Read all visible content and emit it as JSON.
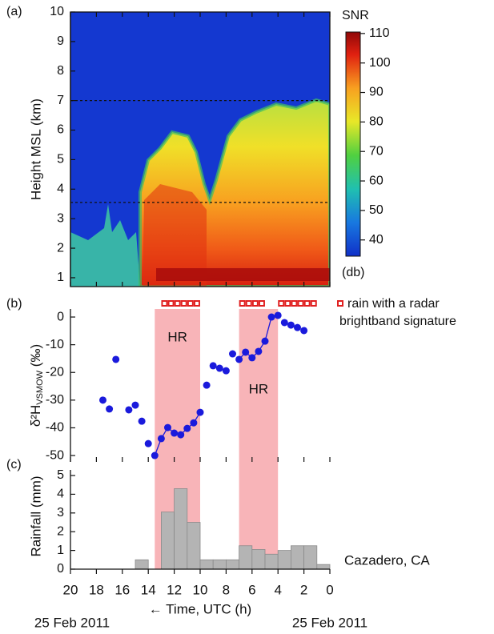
{
  "chart_data": [
    {
      "type": "heatmap",
      "panel_label": "(a)",
      "ylabel": "Height MSL (km)",
      "xlim": [
        20,
        0
      ],
      "ylim": [
        0.7,
        10
      ],
      "yticks": [
        1,
        2,
        3,
        4,
        5,
        6,
        7,
        8,
        9,
        10
      ],
      "hlines": [
        7.0,
        3.55
      ],
      "colorbar": {
        "label": "SNR",
        "unit": "(db)",
        "lim": [
          34.5,
          110.5
        ],
        "ticks": [
          40,
          50,
          60,
          70,
          80,
          90,
          100,
          110
        ]
      }
    },
    {
      "type": "scatter",
      "panel_label": "(b)",
      "ylabel": "δ²H",
      "ylabel_sub": "VSMOW",
      "ylabel_unit": " (‰)",
      "xlim": [
        20,
        0
      ],
      "ylim": [
        -52.3,
        2.9
      ],
      "yticks": [
        0,
        -10,
        -20,
        -30,
        -40,
        -50
      ],
      "x": [
        17.5,
        17,
        16.5,
        15.5,
        15,
        14.5,
        14,
        13.5,
        13,
        12.5,
        12,
        11.5,
        11,
        10.5,
        10,
        9.5,
        9,
        8.5,
        8,
        7.5,
        7,
        6.5,
        6,
        5.5,
        5,
        4.5,
        4,
        3.5,
        3,
        2.5,
        2
      ],
      "series": [
        {
          "color": "#1a1adc",
          "style": "markers",
          "values": [
            -30,
            -33.2,
            -15.3,
            -33.5,
            -31.8,
            -37.6,
            -45.7,
            -50,
            -43.9,
            -39.9,
            -41.9,
            -42.5,
            -40.2,
            -38.2,
            -34.4,
            -24.6,
            -17.6,
            -18.5,
            -19.4,
            -13.3,
            -15.3,
            -12.7,
            -14.7,
            -12.4,
            -8.7,
            0,
            0.6,
            -2,
            -2.9,
            -3.8,
            -4.9
          ]
        },
        {
          "color": "#1a1adc",
          "style": "line",
          "values": [
            null,
            null,
            null,
            null,
            null,
            null,
            null,
            -50,
            -43.9,
            -39.9,
            -41.9,
            -42.5,
            -40.2,
            -38.2,
            -34.4,
            null,
            null,
            null,
            null,
            null,
            -15.3,
            -12.7,
            -14.7,
            -12.4,
            -8.7,
            0,
            0.6,
            null,
            null,
            null,
            null
          ]
        }
      ],
      "shaded": [
        {
          "from": 13.5,
          "to": 10,
          "label": "HR",
          "color": "#f8b4b8"
        },
        {
          "from": 7,
          "to": 4,
          "label": "HR",
          "color": "#f8b4b8"
        }
      ],
      "brightband": {
        "color": "#e02020",
        "times": [
          12.75,
          12.25,
          11.75,
          11.25,
          10.75,
          10.25,
          6.75,
          6.25,
          5.75,
          5.25,
          3.75,
          3.25,
          2.75,
          2.25,
          1.75,
          1.25
        ],
        "legend_lines": [
          "rain with a radar",
          "brightband signature"
        ]
      }
    },
    {
      "type": "histogram",
      "panel_label": "(c)",
      "ylabel": "Rainfall (mm)",
      "station": "Cazadero, CA",
      "xlabel": "← Time, UTC (h)",
      "dates": [
        "25 Feb 2011",
        "25 Feb 2011"
      ],
      "xlim": [
        20,
        0
      ],
      "ylim": [
        0,
        5.3
      ],
      "yticks": [
        0,
        1,
        2,
        3,
        4,
        5
      ],
      "xticks": [
        20,
        18,
        16,
        14,
        12,
        10,
        8,
        6,
        4,
        2,
        0
      ],
      "color": "#b4b4b4",
      "bins": [
        20,
        19,
        18,
        17,
        16,
        15,
        14,
        13,
        12,
        11,
        10,
        9,
        8,
        7,
        6,
        5,
        4,
        3,
        2,
        1,
        0
      ],
      "values": [
        0,
        0,
        0,
        0,
        0,
        0.5,
        0,
        3.05,
        4.3,
        2.5,
        0.5,
        0.5,
        0.5,
        1.25,
        1.05,
        0.8,
        1.0,
        1.25,
        1.25,
        0.25
      ]
    }
  ]
}
